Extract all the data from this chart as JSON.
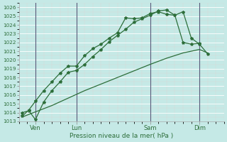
{
  "bg_color": "#c5e9e6",
  "grid_major_color": "#ffffff",
  "grid_minor_color": "#f2c8c8",
  "line_color": "#2d6e3a",
  "font_color": "#2d6e3a",
  "xlabel": "Pression niveau de la mer( hPa )",
  "ylim": [
    1013,
    1026.5
  ],
  "xlim": [
    0,
    12
  ],
  "ytick_vals": [
    1013,
    1014,
    1015,
    1016,
    1017,
    1018,
    1019,
    1020,
    1021,
    1022,
    1023,
    1024,
    1025,
    1026
  ],
  "xtick_pos": [
    1.0,
    3.5,
    8.0,
    11.0
  ],
  "xtick_labels": [
    "Ven",
    "Lun",
    "Sam",
    "Dim"
  ],
  "vline_pos": [
    1.0,
    3.5,
    8.0,
    11.0
  ],
  "line1_x": [
    0.2,
    0.6,
    1.0,
    1.5,
    2.0,
    2.5,
    3.0,
    3.5,
    4.0,
    4.5,
    5.0,
    5.5,
    6.0,
    6.5,
    7.0,
    7.5,
    8.0,
    8.5,
    9.0,
    9.5,
    10.0,
    10.5,
    11.0,
    11.5
  ],
  "line1_y": [
    1014.0,
    1014.2,
    1013.2,
    1015.2,
    1016.5,
    1017.5,
    1018.6,
    1018.8,
    1019.5,
    1020.4,
    1021.2,
    1022.1,
    1022.8,
    1023.5,
    1024.3,
    1024.7,
    1025.1,
    1025.6,
    1025.7,
    1025.1,
    1025.5,
    1022.5,
    1021.8,
    1020.7
  ],
  "line2_x": [
    0.2,
    0.6,
    1.0,
    1.5,
    2.0,
    2.5,
    3.0,
    3.5,
    4.0,
    4.5,
    5.0,
    5.5,
    6.0,
    6.5,
    7.0,
    7.5,
    8.0,
    8.5,
    9.0,
    9.5,
    10.0,
    10.5,
    11.0
  ],
  "line2_y": [
    1013.6,
    1014.3,
    1015.3,
    1016.5,
    1017.5,
    1018.5,
    1019.3,
    1019.3,
    1020.5,
    1021.3,
    1021.8,
    1022.5,
    1023.1,
    1024.8,
    1024.7,
    1024.8,
    1025.3,
    1025.5,
    1025.2,
    1025.1,
    1022.0,
    1021.8,
    1021.9
  ],
  "line3_x": [
    0.2,
    2.0,
    4.0,
    6.0,
    8.0,
    9.0,
    10.0,
    11.0,
    11.5
  ],
  "line3_y": [
    1013.5,
    1014.8,
    1016.5,
    1018.0,
    1019.5,
    1020.2,
    1020.8,
    1021.2,
    1020.8
  ]
}
